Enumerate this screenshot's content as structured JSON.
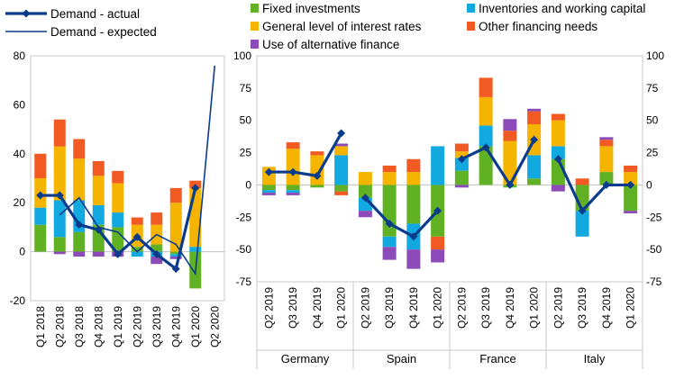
{
  "chart_data": [
    {
      "type": "bar",
      "stacked": true,
      "categories": [
        "Q1 2018",
        "Q2 2018",
        "Q3 2018",
        "Q4 2018",
        "Q1 2019",
        "Q2 2019",
        "Q3 2019",
        "Q4 2019",
        "Q1 2020",
        "Q2 2020"
      ],
      "ylim": [
        -20,
        80
      ],
      "yticks": [
        "-20",
        "0",
        "20",
        "40",
        "60",
        "80"
      ],
      "grid": false,
      "series": [
        {
          "name": "Fixed investments",
          "color": "#61b124",
          "values": [
            11,
            6,
            8,
            11,
            10,
            2,
            3,
            -1,
            -15,
            null
          ]
        },
        {
          "name": "Inventories and working capital",
          "color": "#12a8e0",
          "values": [
            7,
            15,
            13,
            8,
            6,
            -2,
            -2,
            -1,
            2,
            null
          ]
        },
        {
          "name": "General level of interest rates",
          "color": "#f4b400",
          "values": [
            12,
            22,
            17,
            12,
            12,
            9,
            8,
            20,
            24,
            null
          ]
        },
        {
          "name": "Other financing needs",
          "color": "#f15a22",
          "values": [
            10,
            11,
            8,
            6,
            5,
            3,
            5,
            6,
            3,
            null
          ]
        },
        {
          "name": "Use of alternative finance",
          "color": "#8c4bb8",
          "values": [
            0,
            -1,
            -2,
            -2,
            -2,
            0,
            -3,
            -1,
            0,
            null
          ]
        }
      ],
      "lines": [
        {
          "name": "Demand - actual",
          "color": "#0b3c8c",
          "marker": "diamond",
          "values": [
            23,
            23,
            11,
            9,
            -1,
            6,
            -1,
            -7,
            26,
            null
          ]
        },
        {
          "name": "Demand - expected",
          "color": "#0b3c8c",
          "marker": "none",
          "values": [
            null,
            15,
            22,
            10,
            8,
            0,
            7,
            3,
            -9,
            76
          ]
        }
      ]
    },
    {
      "type": "bar",
      "stacked": true,
      "groups": [
        "Germany",
        "Spain",
        "France",
        "Italy"
      ],
      "categories": [
        "Q2 2019",
        "Q3 2019",
        "Q4 2019",
        "Q1 2020"
      ],
      "ylim": [
        -75,
        100
      ],
      "yticks": [
        "-75",
        "-50",
        "-25",
        "0",
        "25",
        "50",
        "75",
        "100"
      ],
      "grid": false,
      "series": [
        {
          "name": "Fixed investments",
          "color": "#61b124",
          "values": {
            "Germany": [
              -4,
              -4,
              -2,
              -5
            ],
            "Spain": [
              -10,
              -40,
              -30,
              -40
            ],
            "France": [
              11,
              30,
              -2,
              5
            ],
            "Italy": [
              20,
              -20,
              10,
              -20
            ]
          }
        },
        {
          "name": "Inventories and working capital",
          "color": "#12a8e0",
          "values": {
            "Germany": [
              -2,
              -2,
              0,
              23
            ],
            "Spain": [
              -10,
              -8,
              -20,
              30
            ],
            "France": [
              10,
              16,
              0,
              18
            ],
            "Italy": [
              10,
              -20,
              0,
              0
            ]
          }
        },
        {
          "name": "General level of interest rates",
          "color": "#f4b400",
          "values": {
            "Germany": [
              14,
              28,
              23,
              7
            ],
            "Spain": [
              10,
              10,
              10,
              0
            ],
            "France": [
              5,
              22,
              34,
              24
            ],
            "Italy": [
              20,
              0,
              20,
              10
            ]
          }
        },
        {
          "name": "Other financing needs",
          "color": "#f15a22",
          "values": {
            "Germany": [
              0,
              5,
              3,
              -3
            ],
            "Spain": [
              0,
              5,
              10,
              -10
            ],
            "France": [
              6,
              15,
              8,
              10
            ],
            "Italy": [
              5,
              5,
              5,
              5
            ]
          }
        },
        {
          "name": "Use of alternative finance",
          "color": "#8c4bb8",
          "values": {
            "Germany": [
              -2,
              -2,
              0,
              2
            ],
            "Spain": [
              -5,
              -10,
              -15,
              -10
            ],
            "France": [
              -2,
              0,
              9,
              2
            ],
            "Italy": [
              -5,
              0,
              2,
              -2
            ]
          }
        }
      ],
      "lines": [
        {
          "name": "Demand - actual",
          "color": "#0b3c8c",
          "marker": "diamond",
          "values": {
            "Germany": [
              10,
              10,
              7,
              40
            ],
            "Spain": [
              -10,
              -30,
              -40,
              -20
            ],
            "France": [
              20,
              29,
              0,
              35
            ],
            "Italy": [
              20,
              -20,
              0,
              0
            ]
          }
        }
      ]
    }
  ],
  "legend": [
    {
      "label": "Demand - actual",
      "kind": "line-diamond",
      "color": "#0b3c8c"
    },
    {
      "label": "Demand - expected",
      "kind": "line",
      "color": "#0b3c8c"
    },
    {
      "label": "Fixed investments",
      "kind": "box",
      "color": "#61b124"
    },
    {
      "label": "Inventories and working capital",
      "kind": "box",
      "color": "#12a8e0"
    },
    {
      "label": "General level of interest rates",
      "kind": "box",
      "color": "#f4b400"
    },
    {
      "label": "Other financing needs",
      "kind": "box",
      "color": "#f15a22"
    },
    {
      "label": "Use of alternative finance",
      "kind": "box",
      "color": "#8c4bb8"
    }
  ]
}
